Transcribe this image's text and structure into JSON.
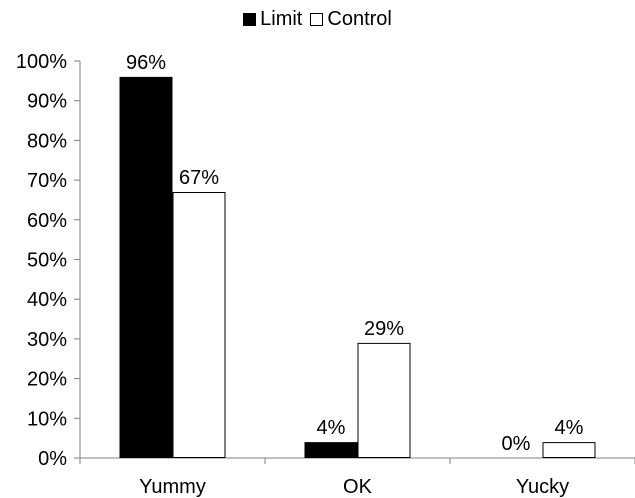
{
  "chart_data": {
    "type": "bar",
    "categories": [
      "Yummy",
      "OK",
      "Yucky"
    ],
    "series": [
      {
        "name": "Limit",
        "values": [
          96,
          4,
          0
        ],
        "labels": [
          "96%",
          "4%",
          "0%"
        ],
        "color": "#000000"
      },
      {
        "name": "Control",
        "values": [
          67,
          29,
          4
        ],
        "labels": [
          "67%",
          "29%",
          "4%"
        ],
        "color": "#ffffff"
      }
    ],
    "ylim": [
      0,
      100
    ],
    "yticks": [
      "0%",
      "10%",
      "20%",
      "30%",
      "40%",
      "50%",
      "60%",
      "70%",
      "80%",
      "90%",
      "100%"
    ],
    "grid": false,
    "legend": "top-center"
  }
}
